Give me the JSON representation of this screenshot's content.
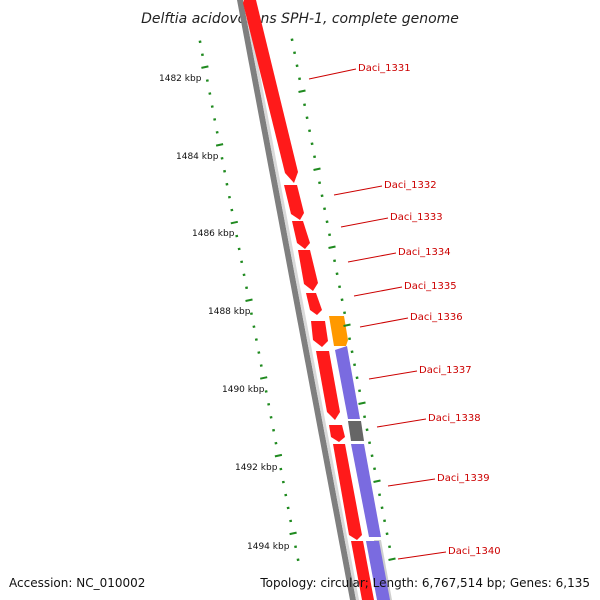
{
  "title": "Delftia acidovorans SPH-1, complete genome",
  "accession_label": "Accession: NC_010002",
  "topology_label": "Topology: circular; Length: 6,767,514 bp; Genes: 6,135",
  "colors": {
    "gene_red": "#ff1a1a",
    "gene_orange": "#ff9900",
    "gene_purple": "#7a6be0",
    "gene_gray": "#666666",
    "backbone": "#808080",
    "ticks": "#1f8a1f",
    "label": "#cc0000"
  },
  "kbp_labels": [
    "1482 kbp",
    "1484 kbp",
    "1486 kbp",
    "1488 kbp",
    "1490 kbp",
    "1492 kbp",
    "1494 kbp"
  ],
  "gene_labels": [
    "Daci_1331",
    "Daci_1332",
    "Daci_1333",
    "Daci_1334",
    "Daci_1335",
    "Daci_1336",
    "Daci_1337",
    "Daci_1338",
    "Daci_1339",
    "Daci_1340"
  ]
}
